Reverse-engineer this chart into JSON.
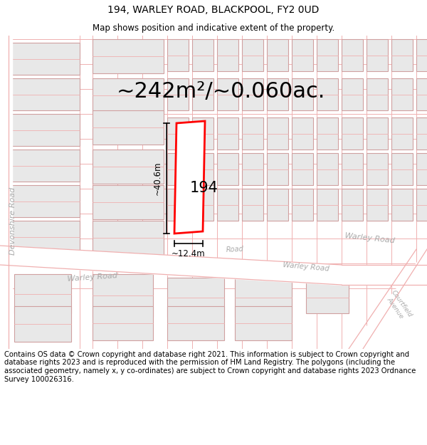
{
  "title_line1": "194, WARLEY ROAD, BLACKPOOL, FY2 0UD",
  "title_line2": "Map shows position and indicative extent of the property.",
  "area_text": "~242m²/~0.060ac.",
  "property_number": "194",
  "dim_height": "~40.6m",
  "dim_width": "~12.4m",
  "footer_text": "Contains OS data © Crown copyright and database right 2021. This information is subject to Crown copyright and database rights 2023 and is reproduced with the permission of HM Land Registry. The polygons (including the associated geometry, namely x, y co-ordinates) are subject to Crown copyright and database rights 2023 Ordnance Survey 100026316.",
  "bg_color": "#ffffff",
  "map_bg": "#ffffff",
  "building_fill": "#e8e8e8",
  "building_edge": "#d0a0a0",
  "road_line_color": "#f0b0b0",
  "highlight_fill": "#ffffff",
  "highlight_edge": "#ff0000",
  "title_fontsize": 10,
  "subtitle_fontsize": 8.5,
  "area_fontsize": 22,
  "footer_fontsize": 7.2,
  "road_label_color": "#aaaaaa",
  "road_label_size": 8
}
